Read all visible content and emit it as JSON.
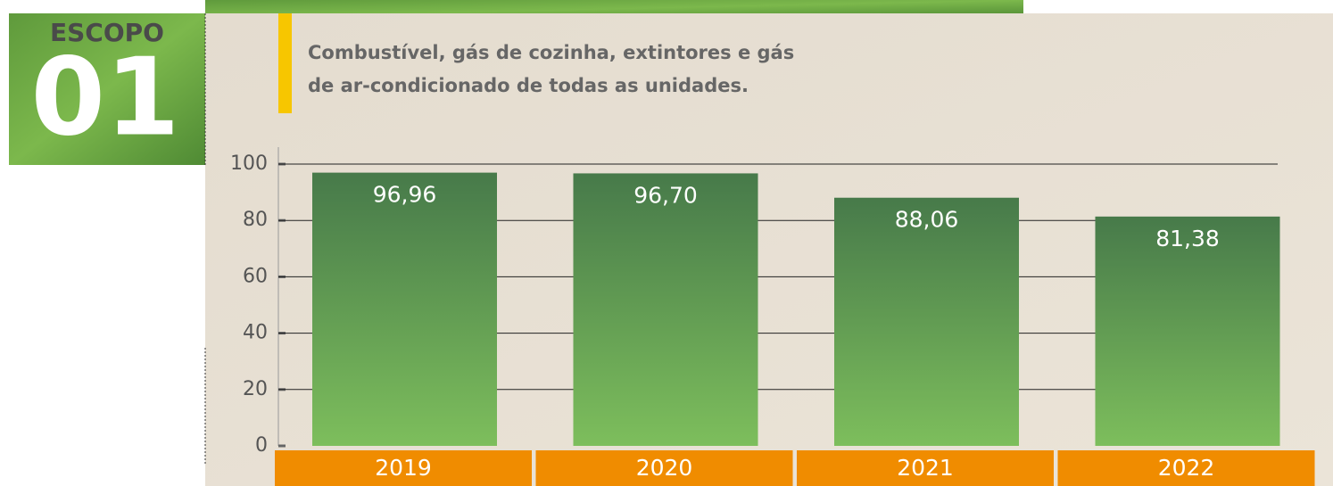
{
  "badge": {
    "label": "ESCOPO",
    "number": "01"
  },
  "chart_data": {
    "type": "bar",
    "title": [
      "Combustível, gás de cozinha, extintores e gás",
      "de ar-condicionado de todas as unidades."
    ],
    "categories": [
      "2019",
      "2020",
      "2021",
      "2022"
    ],
    "values": [
      96.96,
      96.7,
      88.06,
      81.38
    ],
    "value_labels": [
      "96,96",
      "96,70",
      "88,06",
      "81,38"
    ],
    "color": [
      "#477a4a",
      "#7dbe5c"
    ],
    "category_color": "#f08c00",
    "ylim": [
      0,
      100
    ],
    "yticks": [
      0,
      20,
      40,
      60,
      80,
      100
    ],
    "grid": true
  }
}
